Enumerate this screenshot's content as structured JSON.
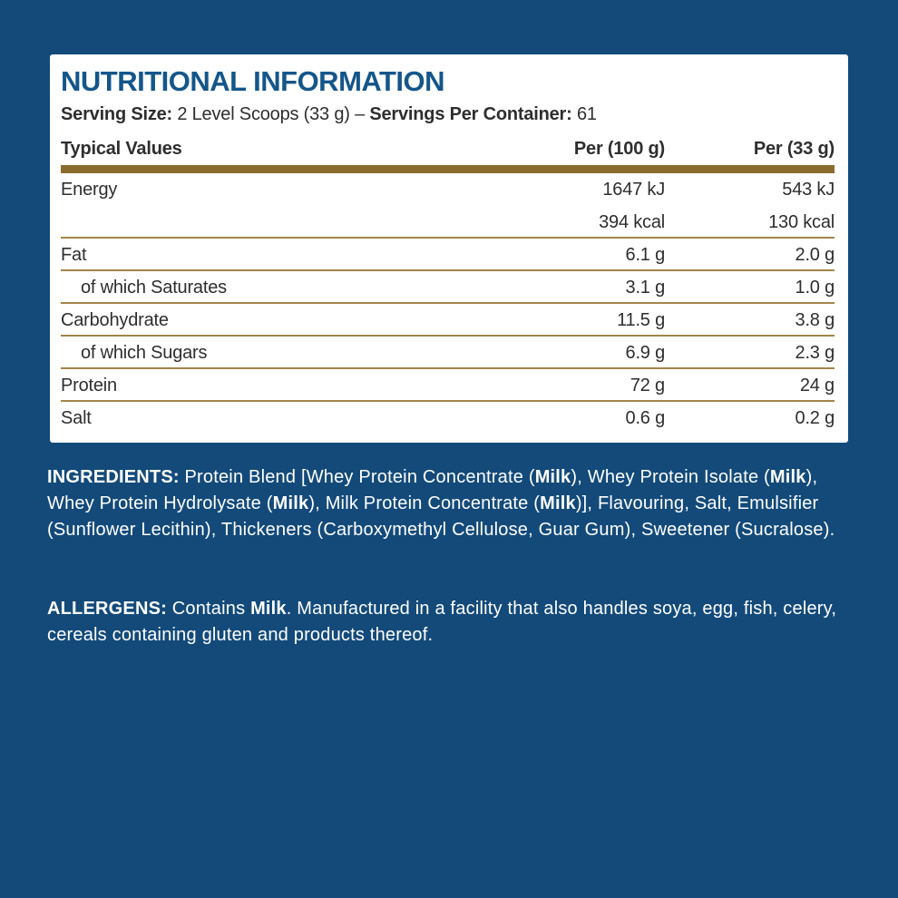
{
  "colors": {
    "background_navy": "#134A7A",
    "card_white": "#FFFFFF",
    "title_blue": "#14568A",
    "gold_thick_bar": "#8A6B2E",
    "gold_thin_line": "#A1854A",
    "table_text": "#2E2E2E",
    "paragraph_text": "#FFFFFF"
  },
  "panel": {
    "title": "NUTRITIONAL INFORMATION",
    "serving_segments": [
      {
        "t": "Serving Size:",
        "b": true
      },
      {
        "t": " 2 Level Scoops (33 g)  –  ",
        "b": false
      },
      {
        "t": "Servings Per Container:",
        "b": true
      },
      {
        "t": " 61",
        "b": false
      }
    ],
    "table": {
      "header": [
        "Typical Values",
        "Per (100 g)",
        "Per (33 g)"
      ],
      "rows": [
        {
          "label": "Energy",
          "per100": "1647 kJ",
          "per33": "543 kJ",
          "indent": false,
          "divider": false
        },
        {
          "label": "",
          "per100": "394 kcal",
          "per33": "130 kcal",
          "indent": false,
          "divider": true
        },
        {
          "label": "Fat",
          "per100": "6.1 g",
          "per33": "2.0 g",
          "indent": false,
          "divider": true
        },
        {
          "label": "of which Saturates",
          "per100": "3.1 g",
          "per33": "1.0 g",
          "indent": true,
          "divider": true
        },
        {
          "label": "Carbohydrate",
          "per100": "11.5 g",
          "per33": "3.8 g",
          "indent": false,
          "divider": true
        },
        {
          "label": "of which Sugars",
          "per100": "6.9 g",
          "per33": "2.3 g",
          "indent": true,
          "divider": true
        },
        {
          "label": "Protein",
          "per100": "72 g",
          "per33": "24 g",
          "indent": false,
          "divider": true
        },
        {
          "label": "Salt",
          "per100": "0.6 g",
          "per33": "0.2 g",
          "indent": false,
          "divider": false
        }
      ]
    }
  },
  "ingredients_segments": [
    {
      "t": "INGREDIENTS:",
      "b": true
    },
    {
      "t": " Protein Blend [Whey Protein Concentrate (",
      "b": false
    },
    {
      "t": "Milk",
      "b": true
    },
    {
      "t": "), Whey Protein Isolate (",
      "b": false
    },
    {
      "t": "Milk",
      "b": true
    },
    {
      "t": "), Whey Protein Hydrolysate (",
      "b": false
    },
    {
      "t": "Milk",
      "b": true
    },
    {
      "t": "), Milk Protein Concentrate (",
      "b": false
    },
    {
      "t": "Milk",
      "b": true
    },
    {
      "t": ")], Flavouring, Salt, Emulsifier (Sunflower Lecithin), Thickeners (Carboxymethyl Cellulose, Guar Gum), Sweetener (Sucralose).",
      "b": false
    }
  ],
  "allergens_segments": [
    {
      "t": "ALLERGENS:",
      "b": true
    },
    {
      "t": " Contains ",
      "b": false
    },
    {
      "t": "Milk",
      "b": true
    },
    {
      "t": ". Manufactured in a facility that also handles soya, egg, fish, celery, cereals containing gluten and products thereof.",
      "b": false
    }
  ]
}
